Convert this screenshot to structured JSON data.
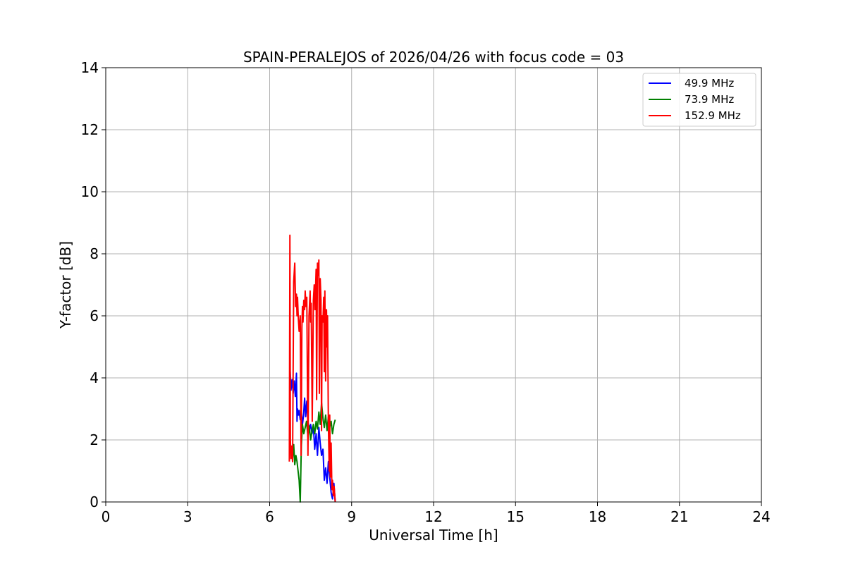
{
  "chart_data": {
    "type": "line",
    "title": "SPAIN-PERALEJOS of 2026/04/26 with focus code = 03",
    "xlabel": "Universal Time [h]",
    "ylabel": "Y-factor [dB]",
    "xlim": [
      0,
      24
    ],
    "ylim": [
      0,
      14
    ],
    "xticks": [
      0,
      3,
      6,
      9,
      12,
      15,
      18,
      21,
      24
    ],
    "yticks": [
      0,
      2,
      4,
      6,
      8,
      10,
      12,
      14
    ],
    "grid": true,
    "legend_position": "top-right",
    "series": [
      {
        "name": "49.9 MHz",
        "color": "#0000ff",
        "x": [
          6.75,
          6.78,
          6.82,
          6.86,
          6.9,
          6.94,
          6.98,
          7.0,
          7.02,
          7.05,
          7.08,
          7.12,
          7.16,
          7.2,
          7.24,
          7.28,
          7.32,
          7.36,
          7.4,
          7.45,
          7.5,
          7.55,
          7.6,
          7.65,
          7.7,
          7.75,
          7.8,
          7.85,
          7.9,
          7.95,
          8.0,
          8.05,
          8.1,
          8.15,
          8.2,
          8.25,
          8.3,
          8.35,
          8.4
        ],
        "y": [
          4.2,
          3.6,
          3.95,
          3.5,
          3.9,
          3.4,
          4.15,
          2.6,
          3.0,
          2.8,
          2.95,
          2.65,
          2.9,
          2.5,
          2.8,
          3.35,
          2.75,
          3.25,
          2.6,
          2.3,
          2.5,
          2.2,
          2.45,
          1.7,
          2.2,
          1.5,
          2.4,
          1.9,
          1.5,
          1.7,
          0.7,
          1.1,
          0.6,
          1.3,
          0.8,
          0.3,
          0.1,
          0.6,
          0.0
        ]
      },
      {
        "name": "73.9 MHz",
        "color": "#008000",
        "x": [
          6.8,
          6.84,
          6.88,
          6.92,
          6.96,
          7.0,
          7.04,
          7.08,
          7.12,
          7.16,
          7.2,
          7.25,
          7.3,
          7.35,
          7.4,
          7.45,
          7.5,
          7.55,
          7.6,
          7.65,
          7.7,
          7.75,
          7.8,
          7.85,
          7.9,
          7.95,
          8.0,
          8.05,
          8.1,
          8.15,
          8.2,
          8.25,
          8.3,
          8.35,
          8.4
        ],
        "y": [
          1.8,
          1.4,
          1.85,
          1.2,
          1.5,
          1.3,
          1.0,
          0.7,
          0.0,
          1.8,
          2.5,
          2.2,
          2.4,
          2.6,
          2.1,
          2.45,
          2.0,
          2.3,
          2.5,
          2.2,
          2.6,
          2.35,
          2.9,
          2.5,
          3.2,
          2.7,
          2.4,
          2.8,
          2.3,
          2.75,
          2.4,
          2.6,
          2.2,
          2.5,
          2.65
        ]
      },
      {
        "name": "152.9 MHz",
        "color": "#ff0000",
        "x": [
          6.72,
          6.74,
          6.76,
          6.78,
          6.8,
          6.84,
          6.88,
          6.92,
          6.95,
          6.98,
          7.0,
          7.02,
          7.05,
          7.08,
          7.12,
          7.15,
          7.18,
          7.2,
          7.22,
          7.25,
          7.28,
          7.3,
          7.33,
          7.36,
          7.4,
          7.44,
          7.48,
          7.5,
          7.52,
          7.56,
          7.6,
          7.63,
          7.66,
          7.7,
          7.72,
          7.75,
          7.78,
          7.8,
          7.82,
          7.85,
          7.88,
          7.9,
          7.92,
          7.95,
          7.98,
          8.0,
          8.02,
          8.05,
          8.08,
          8.1,
          8.12,
          8.15,
          8.18,
          8.2,
          8.22,
          8.25,
          8.28,
          8.3,
          8.33,
          8.36,
          8.4
        ],
        "y": [
          1.3,
          8.6,
          2.0,
          1.4,
          1.8,
          1.3,
          7.1,
          7.7,
          6.3,
          6.7,
          6.0,
          6.6,
          5.9,
          5.5,
          6.0,
          1.5,
          5.6,
          6.3,
          5.8,
          6.5,
          6.2,
          6.8,
          6.3,
          6.6,
          1.5,
          6.0,
          6.8,
          5.8,
          6.4,
          2.6,
          6.5,
          7.0,
          6.2,
          7.5,
          3.3,
          7.7,
          7.3,
          7.8,
          3.5,
          7.2,
          6.5,
          2.3,
          6.0,
          5.8,
          6.6,
          4.2,
          6.8,
          3.9,
          6.2,
          5.0,
          6.0,
          2.5,
          1.0,
          2.8,
          0.8,
          1.9,
          0.4,
          0.7,
          0.2,
          0.5,
          0.0
        ]
      }
    ]
  }
}
